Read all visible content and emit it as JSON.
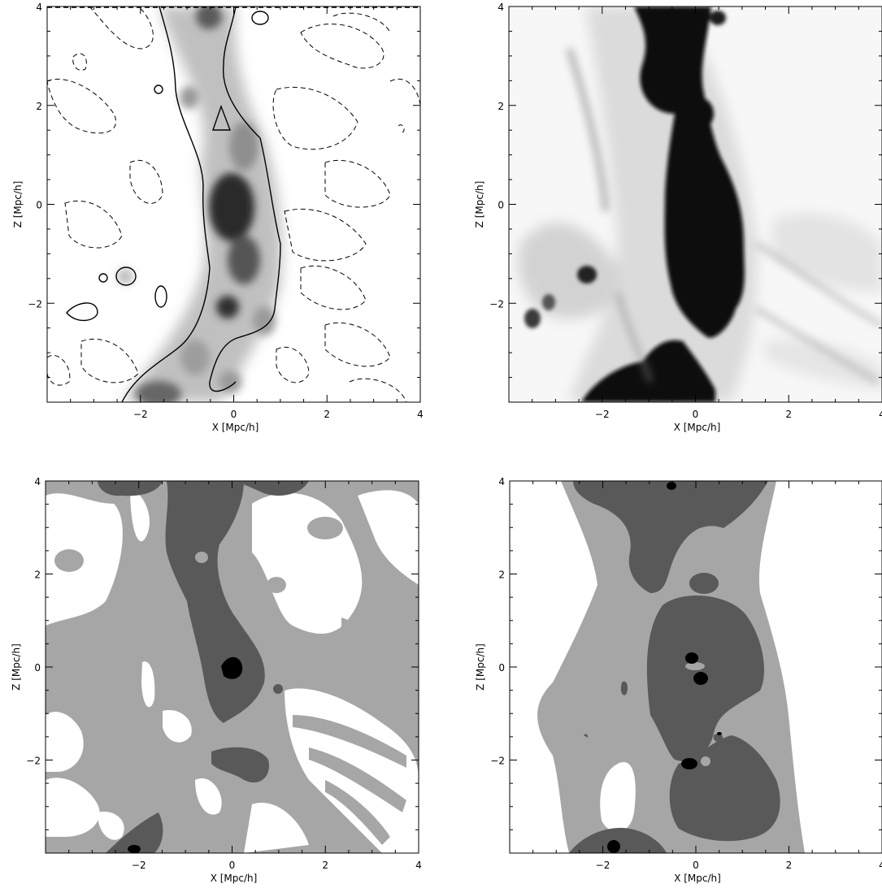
{
  "figure": {
    "panels": [
      {
        "id": "top-left",
        "type": "contour",
        "xlabel": "X [Mpc/h]",
        "ylabel": "Z [Mpc/h]",
        "xlim": [
          -4,
          4
        ],
        "ylim": [
          -4,
          4
        ],
        "xticks": [
          -2,
          0,
          2,
          4
        ],
        "yticks": [
          -2,
          0,
          2,
          4
        ],
        "background": "grayscale density with solid and dashed contours"
      },
      {
        "id": "top-right",
        "type": "heatmap",
        "xlabel": "X [Mpc/h]",
        "ylabel": "Z [Mpc/h]",
        "xlim": [
          -4,
          4
        ],
        "ylim": [
          -4,
          4
        ],
        "xticks": [
          -2,
          0,
          2,
          4
        ],
        "yticks": [
          -2,
          0,
          2,
          4
        ]
      },
      {
        "id": "bottom-left",
        "type": "heatmap",
        "xlabel": "X [Mpc/h]",
        "ylabel": "Z [Mpc/h]",
        "xlim": [
          -4,
          4
        ],
        "ylim": [
          -4,
          4
        ],
        "xticks": [
          -2,
          0,
          2,
          4
        ],
        "yticks": [
          -2,
          0,
          2,
          4
        ],
        "levels": 4
      },
      {
        "id": "bottom-right",
        "type": "heatmap",
        "xlabel": "X [Mpc/h]",
        "ylabel": "Z [Mpc/h]",
        "xlim": [
          -4,
          4
        ],
        "ylim": [
          -4,
          4
        ],
        "xticks": [
          -2,
          0,
          2,
          4
        ],
        "yticks": [
          -2,
          0,
          2,
          4
        ],
        "levels": 4
      }
    ]
  },
  "chart_data": [
    {
      "type": "heatmap",
      "xlabel": "X [Mpc/h]",
      "ylabel": "Z [Mpc/h]",
      "xlim": [
        -4,
        4
      ],
      "ylim": [
        -4,
        4
      ],
      "contours": {
        "solid": "filament boundary",
        "dashed": "underdense levels"
      },
      "colors": {
        "low": "#ffffff",
        "high": "#000000"
      }
    },
    {
      "type": "heatmap",
      "xlabel": "X [Mpc/h]",
      "ylabel": "Z [Mpc/h]",
      "xlim": [
        -4,
        4
      ],
      "ylim": [
        -4,
        4
      ],
      "colors": {
        "low": "#ffffff",
        "high": "#000000"
      }
    },
    {
      "type": "heatmap",
      "xlabel": "X [Mpc/h]",
      "ylabel": "Z [Mpc/h]",
      "xlim": [
        -4,
        4
      ],
      "ylim": [
        -4,
        4
      ],
      "colors": [
        "#ffffff",
        "#a6a6a6",
        "#595959",
        "#000000"
      ]
    },
    {
      "type": "heatmap",
      "xlabel": "X [Mpc/h]",
      "ylabel": "Z [Mpc/h]",
      "xlim": [
        -4,
        4
      ],
      "ylim": [
        -4,
        4
      ],
      "colors": [
        "#ffffff",
        "#a6a6a6",
        "#595959",
        "#000000"
      ]
    }
  ]
}
